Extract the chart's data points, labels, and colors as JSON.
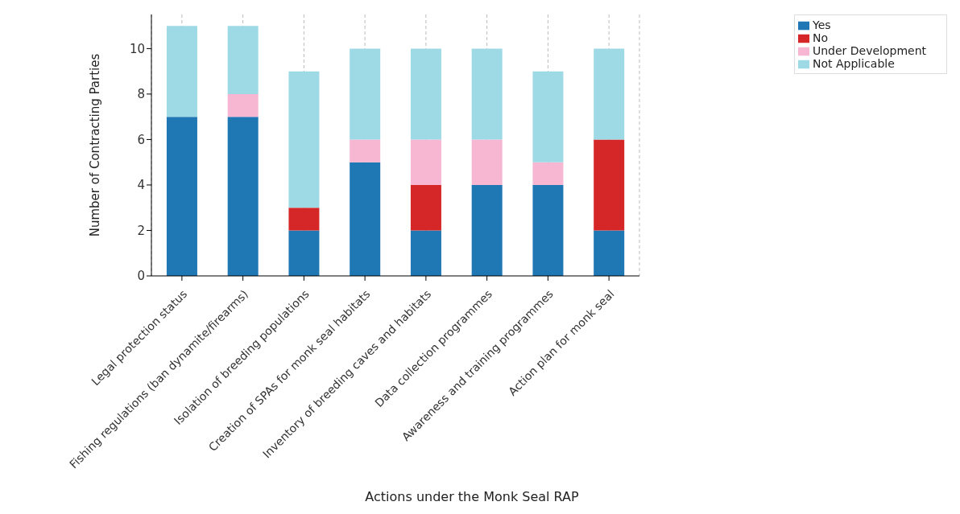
{
  "chart_data": {
    "type": "bar",
    "stacked": true,
    "xlabel": "Actions under the Monk Seal RAP",
    "ylabel": "Number of Contracting Parties",
    "categories": [
      "Legal protection status",
      "Fishing regulations (ban dynamite/firearms)",
      "Isolation of breeding populations",
      "Creation of SPAs for monk seal habitats",
      "Inventory of breeding caves and habitats",
      "Data collection programmes",
      "Awareness and training programmes",
      "Action plan for monk seal"
    ],
    "series": [
      {
        "name": "Yes",
        "color": "#1f77b4",
        "values": [
          7,
          7,
          2,
          5,
          2,
          4,
          4,
          2
        ]
      },
      {
        "name": "No",
        "color": "#d62728",
        "values": [
          0,
          0,
          1,
          0,
          2,
          0,
          0,
          4
        ]
      },
      {
        "name": "Under Development",
        "color": "#f7b6d2",
        "values": [
          0,
          1,
          0,
          1,
          2,
          2,
          1,
          0
        ]
      },
      {
        "name": "Not Applicable",
        "color": "#9edae5",
        "values": [
          4,
          3,
          6,
          4,
          4,
          4,
          4,
          4
        ]
      }
    ],
    "ylim": [
      0,
      11.5
    ],
    "yticks": [
      0,
      2,
      4,
      6,
      8,
      10
    ],
    "grid": "x",
    "legend": "top right"
  }
}
